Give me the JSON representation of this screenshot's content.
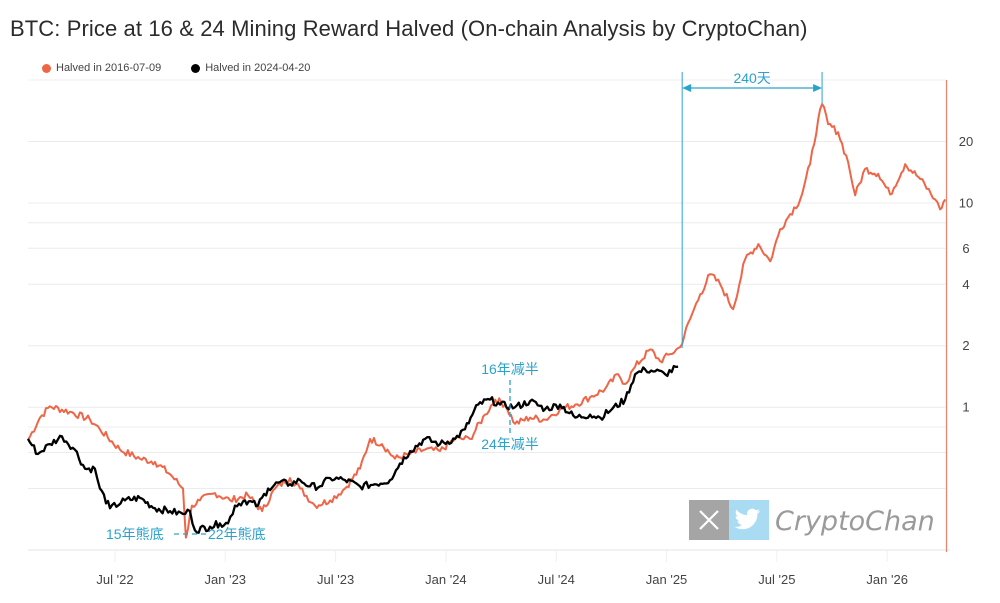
{
  "title": "BTC: Price at 16 & 24 Mining Reward Halved (On-chain Analysis by CryptoChan)",
  "legend": [
    {
      "label": "Halved in 2016-07-09",
      "color": "#ef6548"
    },
    {
      "label": "Halved in 2024-04-20",
      "color": "#000000"
    }
  ],
  "watermark": {
    "x_icon": "x-logo-icon",
    "twitter_icon": "twitter-bird-icon",
    "text": "CryptoChan"
  },
  "annotations": {
    "duration": "240天",
    "halving16": "16年减半",
    "halving24": "24年减半",
    "bottom15": "15年熊底",
    "bottom22": "22年熊底",
    "accent_color": "#2aa3cc"
  },
  "chart_data": {
    "type": "line",
    "title": "BTC: Price at 16 & 24 Mining Reward Halved (On-chain Analysis by CryptoChan)",
    "xlabel": "",
    "ylabel": "",
    "yscale": "log",
    "ylim": [
      0.2,
      40
    ],
    "y_ticks": [
      20,
      10,
      6,
      4,
      2,
      1
    ],
    "y_gridlines": [
      20,
      10,
      8,
      6,
      4,
      2,
      1,
      0.8,
      0.6,
      0.4
    ],
    "y_axis_side": "right",
    "x_ticks": [
      "Jul '22",
      "Jan '23",
      "Jul '23",
      "Jan '24",
      "Jul '24",
      "Jan '25",
      "Jul '25",
      "Jan '26"
    ],
    "x_tick_months": [
      6,
      12,
      18,
      24,
      30,
      36,
      42,
      48
    ],
    "xlim_months": [
      1.27,
      51.2
    ],
    "legend_position": "top-left",
    "grid": true,
    "series": [
      {
        "name": "Halved in 2016-07-09",
        "color": "#ef6548",
        "points": [
          [
            1.27,
            0.69
          ],
          [
            1.92,
            0.89
          ],
          [
            2.46,
            1.01
          ],
          [
            3.55,
            0.95
          ],
          [
            4.64,
            0.87
          ],
          [
            5.18,
            0.78
          ],
          [
            6.27,
            0.62
          ],
          [
            7.36,
            0.56
          ],
          [
            8.18,
            0.54
          ],
          [
            9.0,
            0.47
          ],
          [
            9.7,
            0.4
          ],
          [
            9.86,
            0.23
          ],
          [
            10.19,
            0.33
          ],
          [
            10.62,
            0.35
          ],
          [
            11.44,
            0.38
          ],
          [
            12.26,
            0.35
          ],
          [
            13.24,
            0.37
          ],
          [
            14.0,
            0.31
          ],
          [
            14.71,
            0.4
          ],
          [
            15.52,
            0.45
          ],
          [
            16.07,
            0.4
          ],
          [
            16.88,
            0.33
          ],
          [
            17.7,
            0.35
          ],
          [
            18.51,
            0.4
          ],
          [
            19.33,
            0.5
          ],
          [
            19.87,
            0.7
          ],
          [
            20.52,
            0.66
          ],
          [
            21.23,
            0.56
          ],
          [
            22.05,
            0.59
          ],
          [
            22.87,
            0.62
          ],
          [
            23.68,
            0.61
          ],
          [
            24.5,
            0.7
          ],
          [
            25.31,
            0.7
          ],
          [
            26.13,
            0.92
          ],
          [
            26.68,
            1.09
          ],
          [
            27.22,
            1.03
          ],
          [
            27.76,
            0.83
          ],
          [
            28.58,
            0.89
          ],
          [
            29.4,
            0.87
          ],
          [
            30.21,
            0.98
          ],
          [
            31.03,
            1.03
          ],
          [
            31.84,
            1.12
          ],
          [
            32.66,
            1.23
          ],
          [
            33.37,
            1.45
          ],
          [
            33.75,
            1.3
          ],
          [
            34.29,
            1.58
          ],
          [
            35.11,
            1.92
          ],
          [
            35.65,
            1.68
          ],
          [
            36.2,
            1.82
          ],
          [
            36.74,
            1.97
          ],
          [
            37.28,
            2.7
          ],
          [
            37.83,
            3.57
          ],
          [
            38.37,
            4.48
          ],
          [
            38.92,
            4.0
          ],
          [
            39.62,
            3.02
          ],
          [
            40.28,
            5.31
          ],
          [
            40.99,
            6.29
          ],
          [
            41.64,
            5.18
          ],
          [
            42.18,
            7.45
          ],
          [
            42.72,
            8.82
          ],
          [
            43.27,
            10.4
          ],
          [
            43.81,
            15.5
          ],
          [
            44.25,
            25.7
          ],
          [
            44.46,
            30.5
          ],
          [
            44.79,
            24.3
          ],
          [
            45.33,
            22.2
          ],
          [
            45.88,
            15.8
          ],
          [
            46.26,
            10.9
          ],
          [
            46.8,
            14.7
          ],
          [
            47.51,
            13.9
          ],
          [
            48.16,
            11.0
          ],
          [
            48.98,
            15.5
          ],
          [
            49.8,
            13.1
          ],
          [
            50.61,
            10.4
          ],
          [
            50.88,
            9.3
          ],
          [
            51.16,
            10.4
          ]
        ]
      },
      {
        "name": "Halved in 2024-04-20",
        "color": "#000000",
        "points": [
          [
            1.27,
            0.7
          ],
          [
            1.81,
            0.59
          ],
          [
            2.46,
            0.66
          ],
          [
            3.12,
            0.72
          ],
          [
            3.82,
            0.62
          ],
          [
            4.37,
            0.5
          ],
          [
            4.91,
            0.5
          ],
          [
            5.18,
            0.4
          ],
          [
            5.73,
            0.32
          ],
          [
            6.54,
            0.35
          ],
          [
            7.36,
            0.36
          ],
          [
            8.18,
            0.32
          ],
          [
            9.0,
            0.31
          ],
          [
            9.7,
            0.3
          ],
          [
            10.08,
            0.31
          ],
          [
            10.35,
            0.25
          ],
          [
            11.17,
            0.26
          ],
          [
            11.71,
            0.27
          ],
          [
            12.15,
            0.27
          ],
          [
            12.53,
            0.33
          ],
          [
            13.07,
            0.35
          ],
          [
            13.78,
            0.33
          ],
          [
            14.33,
            0.4
          ],
          [
            14.98,
            0.43
          ],
          [
            15.52,
            0.42
          ],
          [
            16.07,
            0.44
          ],
          [
            16.61,
            0.41
          ],
          [
            17.15,
            0.41
          ],
          [
            17.7,
            0.45
          ],
          [
            18.51,
            0.44
          ],
          [
            19.33,
            0.41
          ],
          [
            20.14,
            0.42
          ],
          [
            20.96,
            0.44
          ],
          [
            21.5,
            0.53
          ],
          [
            22.05,
            0.61
          ],
          [
            22.87,
            0.7
          ],
          [
            23.68,
            0.66
          ],
          [
            24.5,
            0.7
          ],
          [
            25.04,
            0.78
          ],
          [
            25.75,
            1.03
          ],
          [
            26.4,
            1.09
          ],
          [
            26.95,
            1.03
          ],
          [
            27.76,
            1.0
          ],
          [
            28.58,
            1.07
          ],
          [
            29.4,
            0.98
          ],
          [
            30.21,
            1.03
          ],
          [
            31.03,
            0.89
          ],
          [
            31.84,
            0.92
          ],
          [
            32.39,
            0.89
          ],
          [
            33.04,
            0.98
          ],
          [
            33.75,
            1.09
          ],
          [
            34.29,
            1.45
          ],
          [
            34.84,
            1.53
          ],
          [
            35.38,
            1.5
          ],
          [
            35.93,
            1.45
          ],
          [
            36.63,
            1.58
          ]
        ]
      }
    ],
    "annotations": [
      {
        "text": "240天",
        "type": "bracket-arrow",
        "from_month": 36.85,
        "to_month": 44.46
      },
      {
        "text": "16年减半",
        "type": "dashed-marker",
        "at_month": 26.9
      },
      {
        "text": "24年减半",
        "type": "label",
        "at_month": 26.9
      },
      {
        "text": "15年熊底",
        "type": "label"
      },
      {
        "text": "22年熊底",
        "type": "label"
      }
    ]
  }
}
